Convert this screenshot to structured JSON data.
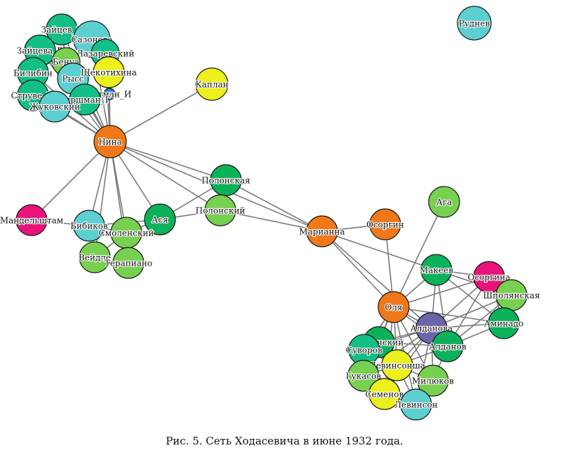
{
  "caption": "Рис. 5. Сеть Ходасевича в июне 1932 года.",
  "palette": {
    "orange": "#f07818",
    "green_dark": "#0cb25a",
    "green_teal": "#12bf86",
    "green_light": "#78d050",
    "cyan": "#5ccfd0",
    "yellow": "#ecf01c",
    "magenta": "#e8147a",
    "purple": "#6a64a8",
    "blue": "#1c8ccc"
  },
  "nodes": [
    {
      "id": "Рудnev_placeholder_skip",
      "skip": true
    },
    {
      "id": "Руднев",
      "color": "cyan"
    },
    {
      "id": "Нина",
      "color": "orange"
    },
    {
      "id": "Каплан",
      "color": "yellow"
    },
    {
      "id": "Зайцев_Б",
      "color": "green_teal"
    },
    {
      "id": "Сазонова",
      "color": "cyan"
    },
    {
      "id": "Зайцева_В",
      "color": "green_teal"
    },
    {
      "id": "Лазаревский",
      "color": "green_teal"
    },
    {
      "id": "Бенуа",
      "color": "green_light"
    },
    {
      "id": "Билибин",
      "color": "green_teal"
    },
    {
      "id": "Рысс",
      "color": "cyan"
    },
    {
      "id": "Щекотихина",
      "color": "yellow"
    },
    {
      "id": "Струве_М",
      "color": "green_teal"
    },
    {
      "id": "Гутман_И",
      "color": "blue"
    },
    {
      "id": "Гиршман_Г",
      "color": "green_teal"
    },
    {
      "id": "Жуковский",
      "color": "cyan"
    },
    {
      "id": "Полонская",
      "color": "green_dark"
    },
    {
      "id": "Полонский",
      "color": "green_light"
    },
    {
      "id": "Мандельштам",
      "color": "magenta"
    },
    {
      "id": "Бибиков",
      "color": "cyan"
    },
    {
      "id": "Ася",
      "color": "green_dark"
    },
    {
      "id": "Смоленский",
      "color": "green_light"
    },
    {
      "id": "Вейдле",
      "color": "green_light"
    },
    {
      "id": "Терапиано",
      "color": "green_light"
    },
    {
      "id": "Марианна",
      "color": "orange"
    },
    {
      "id": "Осоргин",
      "color": "orange"
    },
    {
      "id": "Ага",
      "color": "green_light"
    },
    {
      "id": "Макеев",
      "color": "green_dark"
    },
    {
      "id": "Осоргина",
      "color": "magenta"
    },
    {
      "id": "Шполянская",
      "color": "green_light"
    },
    {
      "id": "Оля",
      "color": "orange"
    },
    {
      "id": "Алданова",
      "color": "purple"
    },
    {
      "id": "Аминадо",
      "color": "green_dark"
    },
    {
      "id": "Долинский",
      "color": "green_dark"
    },
    {
      "id": "Суворов",
      "color": "green_teal"
    },
    {
      "id": "Алданов",
      "color": "green_dark"
    },
    {
      "id": "Левинсонша",
      "color": "yellow"
    },
    {
      "id": "Гукасов",
      "color": "green_light"
    },
    {
      "id": "Милюков",
      "color": "green_light"
    },
    {
      "id": "Семенов",
      "color": "yellow"
    },
    {
      "id": "Левинсон",
      "color": "cyan"
    }
  ],
  "edges": [
    [
      "Нина",
      "Каплан"
    ],
    [
      "Нина",
      "Зайцев_Б"
    ],
    [
      "Нина",
      "Сазонова"
    ],
    [
      "Нина",
      "Зайцева_В"
    ],
    [
      "Нина",
      "Лазаревский"
    ],
    [
      "Нина",
      "Бенуа"
    ],
    [
      "Нина",
      "Билибин"
    ],
    [
      "Нина",
      "Рысс"
    ],
    [
      "Нина",
      "Щекотихина"
    ],
    [
      "Нина",
      "Струве_М"
    ],
    [
      "Нина",
      "Гутман_И"
    ],
    [
      "Нина",
      "Гиршман_Г"
    ],
    [
      "Нина",
      "Жуковский"
    ],
    [
      "Нина",
      "Мандельштам"
    ],
    [
      "Нина",
      "Бибиков"
    ],
    [
      "Нина",
      "Смоленский"
    ],
    [
      "Нина",
      "Вейдле"
    ],
    [
      "Нина",
      "Терапиано"
    ],
    [
      "Нина",
      "Ася"
    ],
    [
      "Нина",
      "Полонская"
    ],
    [
      "Нина",
      "Полонский"
    ],
    [
      "Нина",
      "Марианна"
    ],
    [
      "Мандельштам",
      "Бибиков"
    ],
    [
      "Бибиков",
      "Смоленский"
    ],
    [
      "Бибиков",
      "Ася"
    ],
    [
      "Смоленский",
      "Ася"
    ],
    [
      "Смоленский",
      "Вейдле"
    ],
    [
      "Смоленский",
      "Терапиано"
    ],
    [
      "Ася",
      "Полонская"
    ],
    [
      "Ася",
      "Полонский"
    ],
    [
      "Полонская",
      "Полонский"
    ],
    [
      "Полонская",
      "Марианна"
    ],
    [
      "Полонский",
      "Марианна"
    ],
    [
      "Марианна",
      "Осоргин"
    ],
    [
      "Марианна",
      "Оля"
    ],
    [
      "Марианна",
      "Макеев"
    ],
    [
      "Марианна",
      "Алданова"
    ],
    [
      "Осоргин",
      "Оля"
    ],
    [
      "Ага",
      "Оля"
    ],
    [
      "Макеев",
      "Оля"
    ],
    [
      "Макеев",
      "Осоргина"
    ],
    [
      "Макеев",
      "Шполянская"
    ],
    [
      "Макеев",
      "Алданова"
    ],
    [
      "Макеев",
      "Аминадо"
    ],
    [
      "Макеев",
      "Алданов"
    ],
    [
      "Осоргина",
      "Шполянская"
    ],
    [
      "Осоргина",
      "Алданова"
    ],
    [
      "Осоргина",
      "Алданов"
    ],
    [
      "Осоргина",
      "Аминадо"
    ],
    [
      "Шполянская",
      "Аминадо"
    ],
    [
      "Шполянская",
      "Алданова"
    ],
    [
      "Шполянская",
      "Алданов"
    ],
    [
      "Оля",
      "Алданова"
    ],
    [
      "Оля",
      "Долинский"
    ],
    [
      "Оля",
      "Суворов"
    ],
    [
      "Оля",
      "Алданов"
    ],
    [
      "Оля",
      "Левинсонша"
    ],
    [
      "Оля",
      "Гукасов"
    ],
    [
      "Оля",
      "Милюков"
    ],
    [
      "Оля",
      "Семенов"
    ],
    [
      "Оля",
      "Левинсон"
    ],
    [
      "Оля",
      "Аминадо"
    ],
    [
      "Оля",
      "Осоргина"
    ],
    [
      "Алданова",
      "Аминадо"
    ],
    [
      "Алданова",
      "Долинский"
    ],
    [
      "Алданова",
      "Алданов"
    ],
    [
      "Алданова",
      "Суворов"
    ],
    [
      "Алданова",
      "Левинсонша"
    ],
    [
      "Алданова",
      "Гукасов"
    ],
    [
      "Алданова",
      "Милюков"
    ],
    [
      "Алданова",
      "Семенов"
    ],
    [
      "Алданова",
      "Левинсон"
    ],
    [
      "Долинский",
      "Суворов"
    ],
    [
      "Долинский",
      "Алданов"
    ],
    [
      "Долинский",
      "Левинсонша"
    ],
    [
      "Долинский",
      "Гукасов"
    ],
    [
      "Суворов",
      "Левинсонша"
    ],
    [
      "Суворов",
      "Гукасов"
    ],
    [
      "Суворов",
      "Семенов"
    ],
    [
      "Алданов",
      "Левинсонша"
    ],
    [
      "Алданов",
      "Милюков"
    ],
    [
      "Алданов",
      "Аминадо"
    ],
    [
      "Левинсонша",
      "Гукасов"
    ],
    [
      "Левинсонша",
      "Милюков"
    ],
    [
      "Левинсонша",
      "Семенов"
    ],
    [
      "Левинсонша",
      "Левинсон"
    ],
    [
      "Гукасов",
      "Семенов"
    ],
    [
      "Милюков",
      "Левинсон"
    ],
    [
      "Семенов",
      "Левинсон"
    ],
    [
      "Зайцев_Б",
      "Сазонова"
    ],
    [
      "Зайцев_Б",
      "Зайцева_В"
    ],
    [
      "Зайцев_Б",
      "Бенуа"
    ],
    [
      "Сазонова",
      "Лазаревский"
    ],
    [
      "Зайцева_В",
      "Билибин"
    ],
    [
      "Бенуа",
      "Рысс"
    ],
    [
      "Билибин",
      "Струве_М"
    ],
    [
      "Рысс",
      "Гиршман_Г"
    ],
    [
      "Щекотихина",
      "Гутман_И"
    ],
    [
      "Струве_М",
      "Жуковский"
    ],
    [
      "Гиршман_Г",
      "Гутман_И"
    ],
    [
      "Жуковский",
      "Гиршман_Г"
    ]
  ]
}
